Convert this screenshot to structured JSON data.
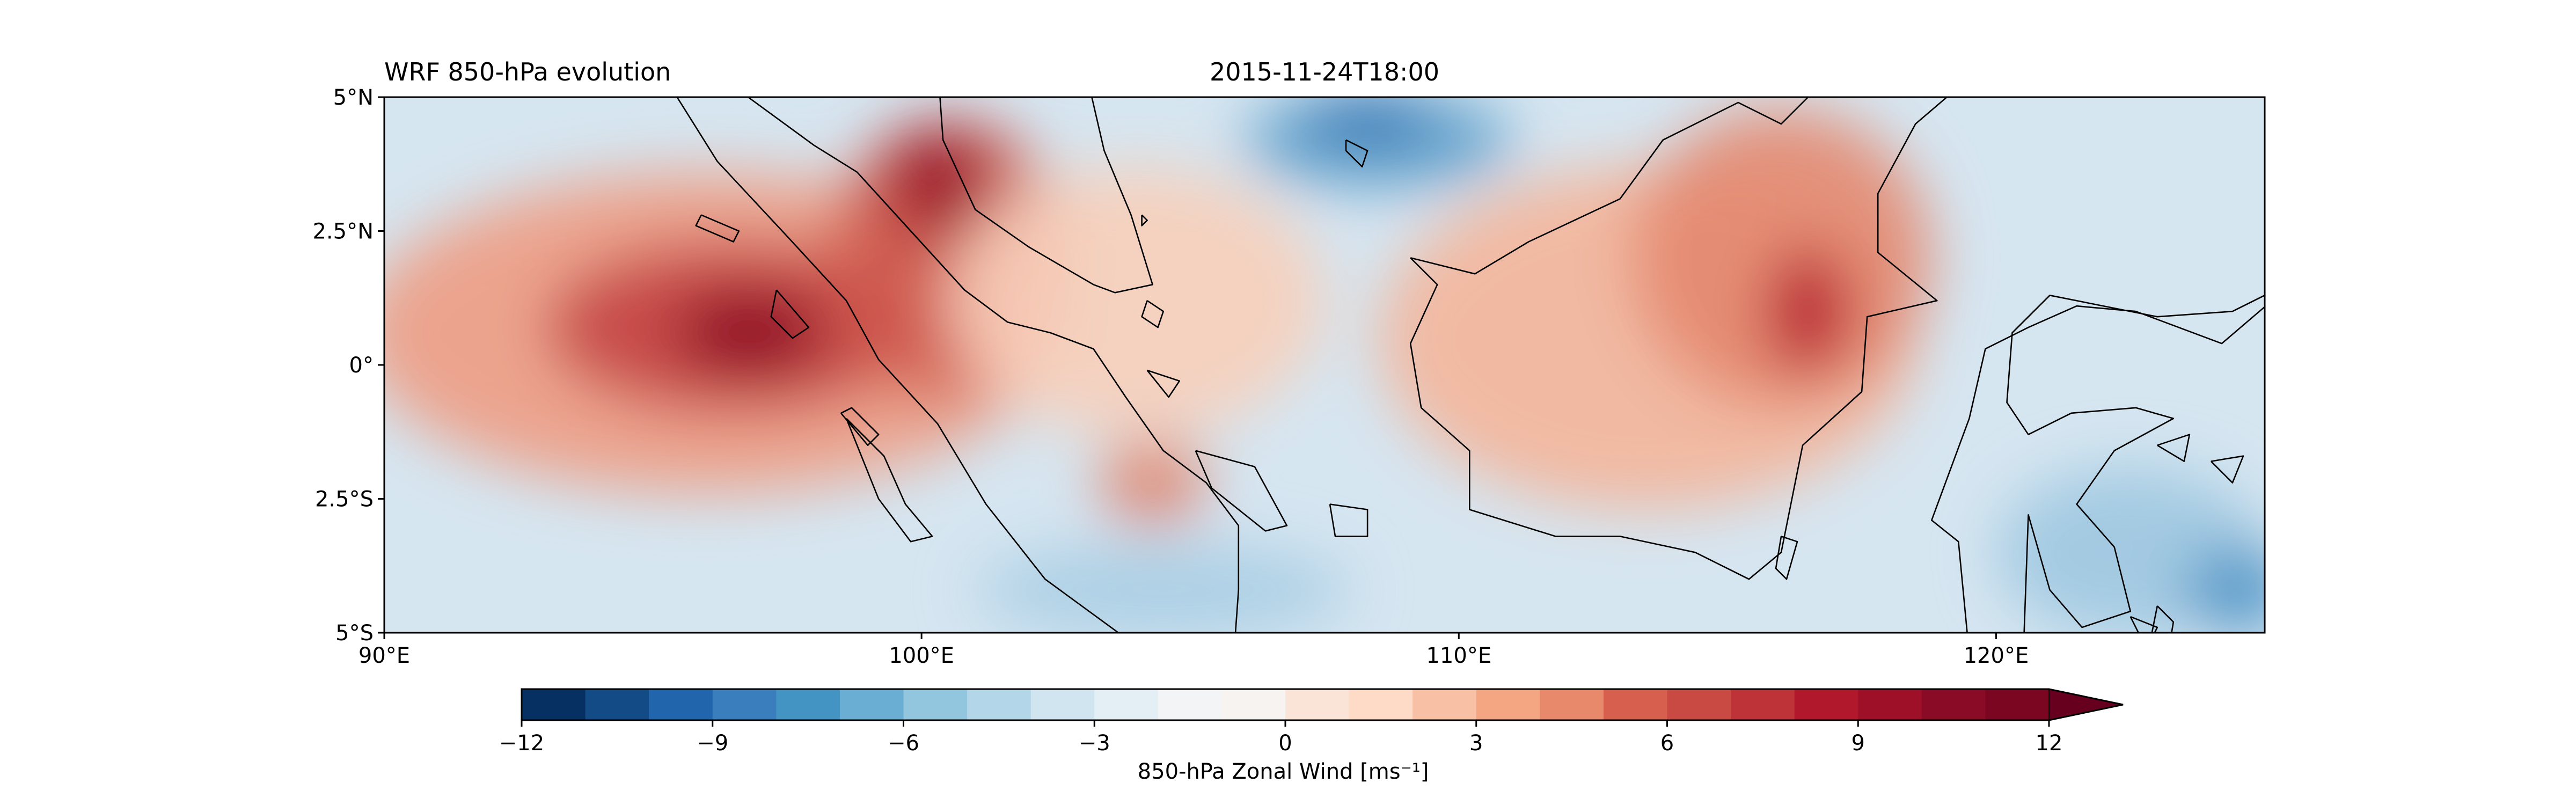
{
  "title_left": "WRF 850-hPa evolution",
  "title_center": "2015-11-24T18:00",
  "map": {
    "lon_range": [
      90,
      125
    ],
    "lat_range": [
      -5,
      5
    ],
    "lon_ticks": [
      {
        "value": 90,
        "label": "90°E"
      },
      {
        "value": 100,
        "label": "100°E"
      },
      {
        "value": 110,
        "label": "110°E"
      },
      {
        "value": 120,
        "label": "120°E"
      }
    ],
    "lat_ticks": [
      {
        "value": 5,
        "label": "5°N"
      },
      {
        "value": 2.5,
        "label": "2.5°N"
      },
      {
        "value": 0,
        "label": "0°"
      },
      {
        "value": -2.5,
        "label": "2.5°S"
      },
      {
        "value": -5,
        "label": "5°S"
      }
    ]
  },
  "colorbar": {
    "label": "850-hPa Zonal Wind [ms⁻¹]",
    "min": -12,
    "max": 12,
    "step": 1,
    "extend": "max",
    "ticks": [
      {
        "value": -12,
        "label": "−12"
      },
      {
        "value": -9,
        "label": "−9"
      },
      {
        "value": -6,
        "label": "−6"
      },
      {
        "value": -3,
        "label": "−3"
      },
      {
        "value": 0,
        "label": "0"
      },
      {
        "value": 3,
        "label": "3"
      },
      {
        "value": 6,
        "label": "6"
      },
      {
        "value": 9,
        "label": "9"
      },
      {
        "value": 12,
        "label": "12"
      }
    ],
    "colors": [
      "#053061",
      "#134b87",
      "#2166ac",
      "#3a7ebd",
      "#4393c3",
      "#6aaed3",
      "#92c5de",
      "#b3d6e8",
      "#d1e5f0",
      "#e3eef5",
      "#f2f4f6",
      "#f7f3f1",
      "#fae3d7",
      "#fddbc7",
      "#f8c0a5",
      "#f4a582",
      "#e8896c",
      "#d6604d",
      "#c94a43",
      "#bd3338",
      "#b2182b",
      "#9e1028",
      "#8a0b25",
      "#7a0622"
    ],
    "extend_color": "#67001f"
  },
  "wind_field": {
    "background": "#d6e6f1",
    "bands": [
      {
        "lon": 96,
        "lat": 0.6,
        "r_lon": 6.5,
        "r_lat": 3.0,
        "color": "#ee9d84"
      },
      {
        "lon": 96.5,
        "lat": 0.7,
        "r_lon": 3.5,
        "r_lat": 1.6,
        "color": "#c64444"
      },
      {
        "lon": 96.8,
        "lat": 0.6,
        "r_lon": 1.4,
        "r_lat": 0.8,
        "color": "#8c0c26"
      },
      {
        "lon": 100.5,
        "lat": 2.0,
        "r_lon": 2.2,
        "r_lat": 2.6,
        "color": "#cf5a4f"
      },
      {
        "lon": 100.3,
        "lat": 3.4,
        "r_lon": 0.9,
        "r_lat": 1.0,
        "color": "#991027"
      },
      {
        "lon": 104.0,
        "lat": 1.2,
        "r_lon": 3.5,
        "r_lat": 2.5,
        "color": "#f7cfbb"
      },
      {
        "lon": 104.3,
        "lat": -2.2,
        "r_lon": 1.0,
        "r_lat": 0.8,
        "color": "#e08670"
      },
      {
        "lon": 113.5,
        "lat": 0.5,
        "r_lon": 5.0,
        "r_lat": 3.2,
        "color": "#f3b59b"
      },
      {
        "lon": 116.0,
        "lat": 2.0,
        "r_lon": 2.8,
        "r_lat": 2.8,
        "color": "#e48a71"
      },
      {
        "lon": 116.5,
        "lat": 1.0,
        "r_lon": 0.8,
        "r_lat": 1.2,
        "color": "#b81e2f"
      },
      {
        "lon": 108.5,
        "lat": 4.2,
        "r_lon": 2.5,
        "r_lat": 0.9,
        "color": "#5e9fcb"
      },
      {
        "lon": 108.3,
        "lat": 4.6,
        "r_lon": 1.2,
        "r_lat": 0.5,
        "color": "#2f73b3"
      },
      {
        "lon": 122.5,
        "lat": -3.5,
        "r_lon": 2.5,
        "r_lat": 1.6,
        "color": "#9ec8e1"
      },
      {
        "lon": 124.5,
        "lat": -4.2,
        "r_lon": 1.0,
        "r_lat": 0.8,
        "color": "#4b93c6"
      },
      {
        "lon": 104.5,
        "lat": -4.2,
        "r_lon": 3.5,
        "r_lat": 0.9,
        "color": "#a9cee4"
      }
    ]
  },
  "coastlines": [
    {
      "name": "sumatra",
      "points": [
        [
          95.2,
          5.4
        ],
        [
          96.5,
          5.2
        ],
        [
          98.0,
          4.1
        ],
        [
          98.8,
          3.6
        ],
        [
          99.8,
          2.5
        ],
        [
          100.8,
          1.4
        ],
        [
          101.6,
          0.8
        ],
        [
          102.4,
          0.6
        ],
        [
          103.2,
          0.3
        ],
        [
          103.8,
          -0.6
        ],
        [
          104.5,
          -1.6
        ],
        [
          105.3,
          -2.2
        ],
        [
          105.9,
          -3.0
        ],
        [
          105.9,
          -4.2
        ],
        [
          105.8,
          -5.6
        ],
        [
          104.8,
          -5.9
        ],
        [
          103.8,
          -5.1
        ],
        [
          102.3,
          -4.0
        ],
        [
          101.2,
          -2.6
        ],
        [
          100.3,
          -1.1
        ],
        [
          99.2,
          0.1
        ],
        [
          98.6,
          1.2
        ],
        [
          97.5,
          2.4
        ],
        [
          96.2,
          3.8
        ],
        [
          95.2,
          5.4
        ]
      ]
    },
    {
      "name": "malay-peninsula",
      "points": [
        [
          100.3,
          5.6
        ],
        [
          100.4,
          4.2
        ],
        [
          101.0,
          2.9
        ],
        [
          102.0,
          2.2
        ],
        [
          103.2,
          1.5
        ],
        [
          103.6,
          1.35
        ],
        [
          104.3,
          1.5
        ],
        [
          103.9,
          2.8
        ],
        [
          103.4,
          4.0
        ],
        [
          103.1,
          5.3
        ],
        [
          103.0,
          5.6
        ]
      ]
    },
    {
      "name": "borneo",
      "points": [
        [
          109.1,
          2.0
        ],
        [
          109.6,
          1.5
        ],
        [
          109.1,
          0.4
        ],
        [
          109.3,
          -0.8
        ],
        [
          110.2,
          -1.6
        ],
        [
          110.2,
          -2.7
        ],
        [
          111.8,
          -3.2
        ],
        [
          113.0,
          -3.2
        ],
        [
          114.4,
          -3.5
        ],
        [
          115.4,
          -4.0
        ],
        [
          116.0,
          -3.5
        ],
        [
          116.4,
          -1.5
        ],
        [
          117.5,
          -0.5
        ],
        [
          117.6,
          0.9
        ],
        [
          118.9,
          1.2
        ],
        [
          117.8,
          2.1
        ],
        [
          117.8,
          3.2
        ],
        [
          118.5,
          4.5
        ],
        [
          119.2,
          5.1
        ],
        [
          119.3,
          5.6
        ],
        [
          118.0,
          5.7
        ],
        [
          117.0,
          5.5
        ],
        [
          116.0,
          4.5
        ],
        [
          115.2,
          4.9
        ],
        [
          113.8,
          4.2
        ],
        [
          113.0,
          3.1
        ],
        [
          111.3,
          2.3
        ],
        [
          110.3,
          1.7
        ],
        [
          109.1,
          2.0
        ]
      ]
    },
    {
      "name": "sulawesi",
      "points": [
        [
          125.6,
          1.6
        ],
        [
          124.4,
          1.0
        ],
        [
          123.0,
          0.9
        ],
        [
          121.0,
          1.3
        ],
        [
          120.3,
          0.6
        ],
        [
          120.2,
          -0.7
        ],
        [
          120.6,
          -1.3
        ],
        [
          121.4,
          -0.9
        ],
        [
          122.6,
          -0.8
        ],
        [
          123.3,
          -1.0
        ],
        [
          122.2,
          -1.6
        ],
        [
          121.5,
          -2.6
        ],
        [
          122.2,
          -3.4
        ],
        [
          122.5,
          -4.6
        ],
        [
          121.6,
          -4.9
        ],
        [
          121.0,
          -4.2
        ],
        [
          120.6,
          -2.8
        ],
        [
          120.5,
          -5.6
        ],
        [
          119.5,
          -5.4
        ],
        [
          119.3,
          -3.3
        ],
        [
          118.8,
          -2.9
        ],
        [
          119.5,
          -1.0
        ],
        [
          119.8,
          0.3
        ],
        [
          120.6,
          0.7
        ],
        [
          121.5,
          1.1
        ],
        [
          122.6,
          1.0
        ],
        [
          124.2,
          0.4
        ],
        [
          125.6,
          1.6
        ]
      ]
    },
    {
      "name": "mentawai",
      "points": [
        [
          98.6,
          -1.0
        ],
        [
          99.3,
          -1.7
        ],
        [
          99.7,
          -2.6
        ],
        [
          100.2,
          -3.2
        ],
        [
          99.8,
          -3.3
        ],
        [
          99.2,
          -2.5
        ],
        [
          98.6,
          -1.0
        ]
      ]
    },
    {
      "name": "nias",
      "points": [
        [
          97.3,
          1.4
        ],
        [
          97.9,
          0.7
        ],
        [
          97.6,
          0.5
        ],
        [
          97.2,
          0.9
        ],
        [
          97.3,
          1.4
        ]
      ]
    },
    {
      "name": "siberut",
      "points": [
        [
          98.5,
          -0.9
        ],
        [
          99.0,
          -1.5
        ],
        [
          99.2,
          -1.3
        ],
        [
          98.7,
          -0.8
        ],
        [
          98.5,
          -0.9
        ]
      ]
    },
    {
      "name": "simeulue",
      "points": [
        [
          95.9,
          2.8
        ],
        [
          96.6,
          2.5
        ],
        [
          96.5,
          2.3
        ],
        [
          95.8,
          2.6
        ],
        [
          95.9,
          2.8
        ]
      ]
    },
    {
      "name": "bangka",
      "points": [
        [
          105.1,
          -1.6
        ],
        [
          106.2,
          -1.9
        ],
        [
          106.8,
          -3.0
        ],
        [
          106.4,
          -3.1
        ],
        [
          105.4,
          -2.3
        ],
        [
          105.1,
          -1.6
        ]
      ]
    },
    {
      "name": "belitung",
      "points": [
        [
          107.6,
          -2.6
        ],
        [
          108.3,
          -2.7
        ],
        [
          108.3,
          -3.2
        ],
        [
          107.7,
          -3.2
        ],
        [
          107.6,
          -2.6
        ]
      ]
    },
    {
      "name": "lingga",
      "points": [
        [
          104.2,
          -0.1
        ],
        [
          104.8,
          -0.3
        ],
        [
          104.6,
          -0.6
        ],
        [
          104.2,
          -0.1
        ]
      ]
    },
    {
      "name": "riau",
      "points": [
        [
          104.2,
          1.2
        ],
        [
          104.5,
          1.0
        ],
        [
          104.4,
          0.7
        ],
        [
          104.1,
          0.9
        ],
        [
          104.2,
          1.2
        ]
      ]
    },
    {
      "name": "natuna",
      "points": [
        [
          107.9,
          4.2
        ],
        [
          108.3,
          4.0
        ],
        [
          108.2,
          3.7
        ],
        [
          107.9,
          4.0
        ],
        [
          107.9,
          4.2
        ]
      ]
    },
    {
      "name": "tioman",
      "points": [
        [
          104.1,
          2.8
        ],
        [
          104.2,
          2.7
        ],
        [
          104.1,
          2.6
        ],
        [
          104.1,
          2.8
        ]
      ]
    },
    {
      "name": "muna",
      "points": [
        [
          122.5,
          -4.7
        ],
        [
          123.0,
          -4.9
        ],
        [
          122.8,
          -5.3
        ],
        [
          122.5,
          -4.7
        ]
      ]
    },
    {
      "name": "buton",
      "points": [
        [
          123.0,
          -4.5
        ],
        [
          123.3,
          -4.8
        ],
        [
          123.2,
          -5.4
        ],
        [
          122.9,
          -5.0
        ],
        [
          123.0,
          -4.5
        ]
      ]
    },
    {
      "name": "banggai",
      "points": [
        [
          123.0,
          -1.5
        ],
        [
          123.6,
          -1.3
        ],
        [
          123.5,
          -1.8
        ],
        [
          123.0,
          -1.5
        ]
      ]
    },
    {
      "name": "peleng",
      "points": [
        [
          124.0,
          -1.8
        ],
        [
          124.6,
          -1.7
        ],
        [
          124.4,
          -2.2
        ],
        [
          124.0,
          -1.8
        ]
      ]
    },
    {
      "name": "sula",
      "points": [
        [
          125.5,
          -1.9
        ],
        [
          125.0,
          -2.0
        ],
        [
          125.2,
          -2.3
        ],
        [
          125.6,
          -2.1
        ]
      ]
    },
    {
      "name": "laut",
      "points": [
        [
          116.0,
          -3.2
        ],
        [
          116.3,
          -3.3
        ],
        [
          116.1,
          -4.0
        ],
        [
          115.9,
          -3.8
        ],
        [
          116.0,
          -3.2
        ]
      ]
    }
  ]
}
